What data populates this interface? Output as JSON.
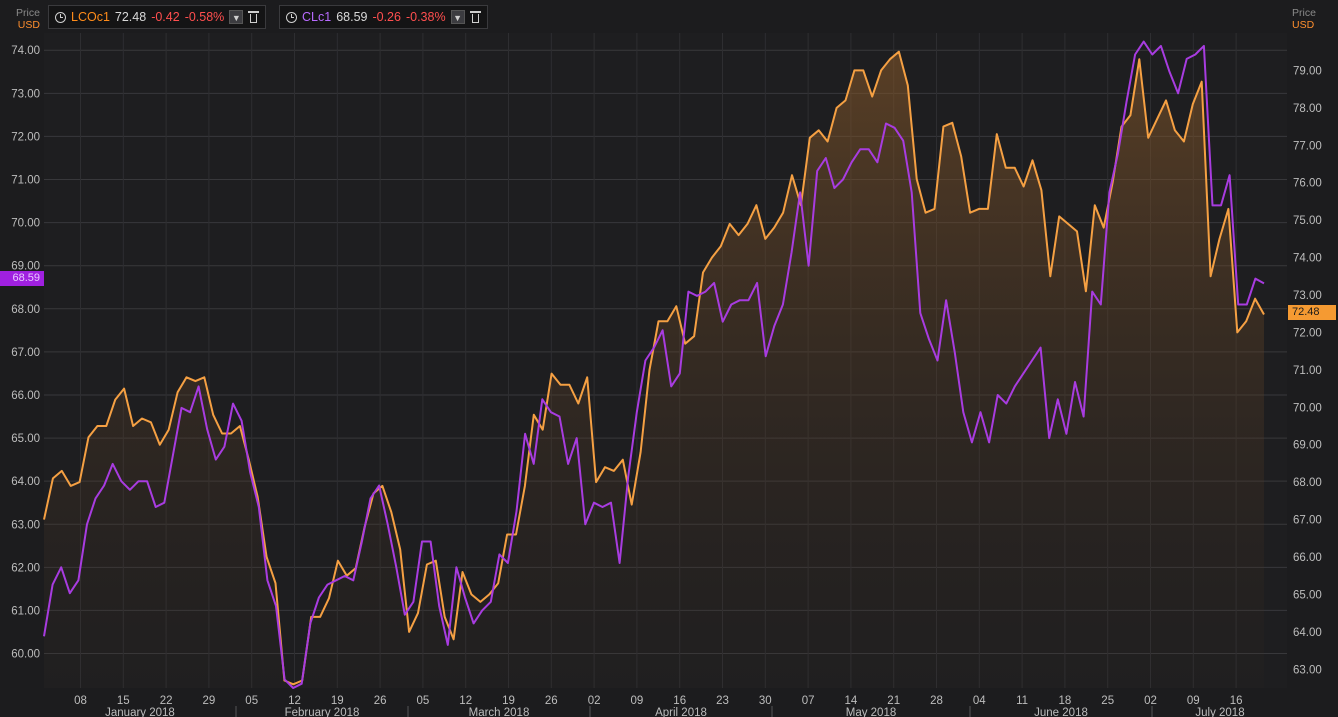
{
  "legend": [
    {
      "name": "LCOc1",
      "price": "72.48",
      "change": "-0.42",
      "pct": "-0.58%",
      "color": "#ff8c1a"
    },
    {
      "name": "CLc1",
      "price": "68.59",
      "change": "-0.26",
      "pct": "-0.38%",
      "color": "#b040ff"
    }
  ],
  "left_axis": {
    "title": "Price",
    "unit": "USD"
  },
  "right_axis": {
    "title": "Price",
    "unit": "USD"
  },
  "tags": {
    "left": "68.59",
    "right": "72.48"
  },
  "chart_data": {
    "type": "line",
    "x_day_labels": [
      "08",
      "15",
      "22",
      "29",
      "05",
      "12",
      "19",
      "26",
      "05",
      "12",
      "19",
      "26",
      "02",
      "09",
      "16",
      "23",
      "30",
      "07",
      "14",
      "21",
      "28",
      "04",
      "11",
      "18",
      "25",
      "02",
      "09",
      "16"
    ],
    "x_month_labels": [
      "January 2018",
      "February 2018",
      "March 2018",
      "April 2018",
      "May 2018",
      "June 2018",
      "July 2018"
    ],
    "left_axis": {
      "range": [
        59.2,
        74.4
      ],
      "ticks": [
        "60.00",
        "61.00",
        "62.00",
        "63.00",
        "64.00",
        "65.00",
        "66.00",
        "67.00",
        "68.00",
        "69.00",
        "70.00",
        "71.00",
        "72.00",
        "73.00",
        "74.00"
      ]
    },
    "right_axis": {
      "range": [
        62.5,
        80.0
      ],
      "ticks": [
        "63.00",
        "64.00",
        "65.00",
        "66.00",
        "67.00",
        "68.00",
        "69.00",
        "70.00",
        "71.00",
        "72.00",
        "73.00",
        "74.00",
        "75.00",
        "76.00",
        "77.00",
        "78.00",
        "79.00"
      ]
    },
    "series": [
      {
        "name": "LCOc1",
        "axis": "right",
        "color": "#f5a043",
        "values": [
          67.0,
          68.1,
          68.3,
          67.9,
          68.0,
          69.2,
          69.5,
          69.5,
          70.2,
          70.5,
          69.5,
          69.7,
          69.6,
          69.0,
          69.4,
          70.4,
          70.8,
          70.7,
          70.8,
          69.8,
          69.3,
          69.3,
          69.5,
          68.6,
          67.6,
          66.0,
          65.3,
          62.7,
          62.6,
          62.7,
          64.4,
          64.4,
          64.9,
          65.9,
          65.5,
          65.7,
          66.8,
          67.7,
          67.9,
          67.2,
          66.2,
          64.0,
          64.5,
          65.8,
          65.9,
          64.4,
          63.8,
          65.6,
          65.0,
          64.8,
          65.0,
          65.3,
          66.6,
          66.6,
          67.9,
          69.8,
          69.4,
          70.9,
          70.6,
          70.6,
          70.1,
          70.8,
          68.0,
          68.4,
          68.3,
          68.6,
          67.4,
          68.8,
          71.0,
          72.3,
          72.3,
          72.7,
          71.7,
          71.9,
          73.6,
          74.0,
          74.3,
          74.9,
          74.6,
          74.9,
          75.4,
          74.5,
          74.8,
          75.2,
          76.2,
          75.4,
          77.2,
          77.4,
          77.1,
          78.0,
          78.2,
          79.0,
          79.0,
          78.3,
          79.0,
          79.3,
          79.5,
          78.6,
          76.1,
          75.2,
          75.3,
          77.5,
          77.6,
          76.7,
          75.2,
          75.3,
          75.3,
          77.3,
          76.4,
          76.4,
          75.9,
          76.6,
          75.8,
          73.5,
          75.1,
          74.9,
          74.7,
          73.1,
          75.4,
          74.8,
          76.0,
          77.5,
          77.8,
          79.3,
          77.2,
          77.7,
          78.2,
          77.4,
          77.1,
          78.1,
          78.7,
          73.5,
          74.5,
          75.3,
          72.0,
          72.3,
          72.9,
          72.48
        ]
      },
      {
        "name": "CLc1",
        "axis": "left",
        "color": "#a83ce0",
        "values": [
          60.4,
          61.6,
          62.0,
          61.4,
          61.7,
          63.0,
          63.6,
          63.9,
          64.4,
          64.0,
          63.8,
          64.0,
          64.0,
          63.4,
          63.5,
          64.6,
          65.7,
          65.6,
          66.2,
          65.2,
          64.5,
          64.8,
          65.8,
          65.4,
          64.2,
          63.4,
          61.7,
          61.1,
          59.4,
          59.2,
          59.3,
          60.7,
          61.3,
          61.6,
          61.7,
          61.8,
          61.7,
          62.6,
          63.6,
          63.9,
          63.0,
          62.0,
          60.9,
          61.2,
          62.6,
          62.6,
          61.1,
          60.2,
          62.0,
          61.3,
          60.7,
          61.0,
          61.2,
          62.3,
          62.1,
          63.3,
          65.1,
          64.4,
          65.9,
          65.6,
          65.5,
          64.4,
          65.0,
          63.0,
          63.5,
          63.4,
          63.5,
          62.1,
          64.1,
          65.6,
          66.8,
          67.1,
          67.5,
          66.2,
          66.5,
          68.4,
          68.3,
          68.4,
          68.6,
          67.7,
          68.1,
          68.2,
          68.2,
          68.6,
          66.9,
          67.6,
          68.1,
          69.3,
          70.7,
          69.0,
          71.2,
          71.5,
          70.8,
          71.0,
          71.4,
          71.7,
          71.7,
          71.4,
          72.3,
          72.2,
          71.9,
          70.7,
          67.9,
          67.3,
          66.8,
          68.2,
          67.0,
          65.6,
          64.9,
          65.6,
          64.9,
          66.0,
          65.8,
          66.2,
          66.5,
          66.8,
          67.1,
          65.0,
          65.9,
          65.1,
          66.3,
          65.5,
          68.4,
          68.1,
          70.7,
          71.6,
          72.8,
          73.9,
          74.2,
          73.9,
          74.1,
          73.5,
          73.0,
          73.8,
          73.9,
          74.1,
          70.4,
          70.4,
          71.1,
          68.1,
          68.1,
          68.7,
          68.59
        ]
      }
    ]
  }
}
